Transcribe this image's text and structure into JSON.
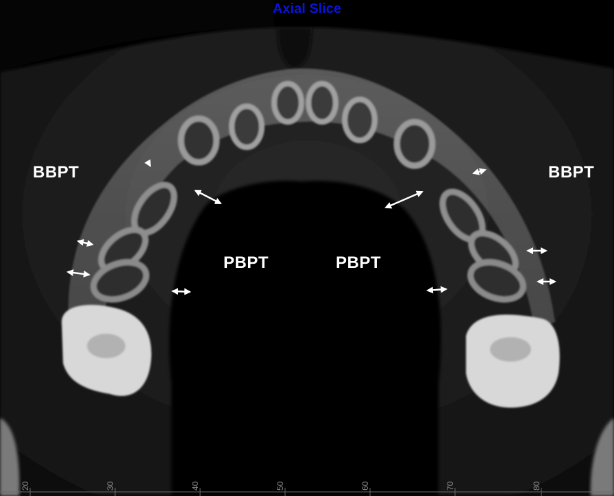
{
  "title": "Axial Slice",
  "labels": {
    "bbpt_left": "BBPT",
    "bbpt_right": "BBPT",
    "pbpt_left": "PBPT",
    "pbpt_right": "PBPT"
  },
  "scale_ticks": [
    "20",
    "30",
    "40",
    "50",
    "60",
    "70",
    "80"
  ],
  "colors": {
    "title": "#0a14d8",
    "labels": "#ffffff",
    "arrows": "#ffffff"
  }
}
